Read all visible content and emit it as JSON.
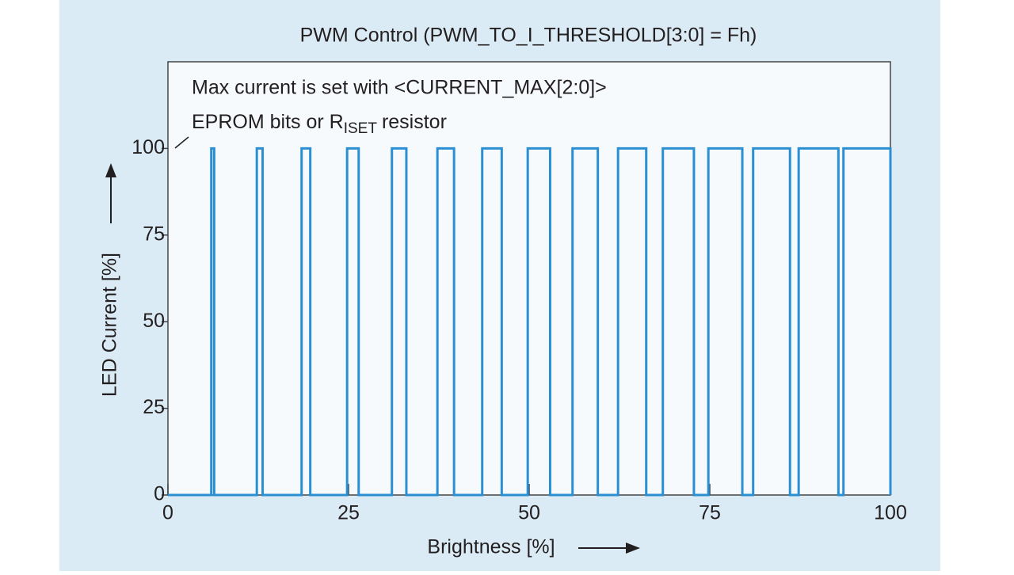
{
  "chart_data": {
    "type": "line",
    "title": "PWM Control (PWM_TO_I_THRESHOLD[3:0] = Fh)",
    "annotations": [
      "Max current is set with <CURRENT_MAX[2:0]>",
      "EPROM bits or R",
      "ISET",
      "resistor"
    ],
    "x_label": "Brightness [%]",
    "y_label": "LED Current [%]",
    "xlim": [
      0,
      100
    ],
    "xticks": [
      0,
      25,
      50,
      75,
      100
    ],
    "ylim": [
      0,
      125
    ],
    "yticks": [
      0,
      25,
      50,
      75,
      100
    ],
    "series": [
      {
        "color": "#2a8fd3",
        "x": [
          0,
          6.0,
          6.0,
          6.4,
          6.4,
          12.3,
          12.3,
          13.1,
          13.1,
          18.5,
          18.5,
          19.7,
          19.7,
          24.8,
          24.8,
          26.4,
          26.4,
          31.0,
          31.0,
          33.0,
          33.0,
          37.3,
          37.3,
          39.6,
          39.6,
          43.5,
          43.5,
          46.2,
          46.2,
          49.8,
          49.8,
          52.9,
          52.9,
          56.0,
          56.0,
          59.5,
          59.5,
          62.3,
          62.3,
          66.2,
          66.2,
          68.5,
          68.5,
          72.8,
          72.8,
          74.8,
          74.8,
          79.5,
          79.5,
          81.0,
          81.0,
          86.1,
          86.1,
          87.3,
          87.3,
          92.8,
          92.8,
          93.5,
          93.5,
          100,
          100
        ],
        "values": [
          0,
          0,
          100,
          100,
          0,
          0,
          100,
          100,
          0,
          0,
          100,
          100,
          0,
          0,
          100,
          100,
          0,
          0,
          100,
          100,
          0,
          0,
          100,
          100,
          0,
          0,
          100,
          100,
          0,
          0,
          100,
          100,
          0,
          0,
          100,
          100,
          0,
          0,
          100,
          100,
          0,
          0,
          100,
          100,
          0,
          0,
          100,
          100,
          0,
          0,
          100,
          100,
          0,
          0,
          100,
          100,
          0,
          0,
          100,
          100,
          0
        ]
      }
    ]
  }
}
